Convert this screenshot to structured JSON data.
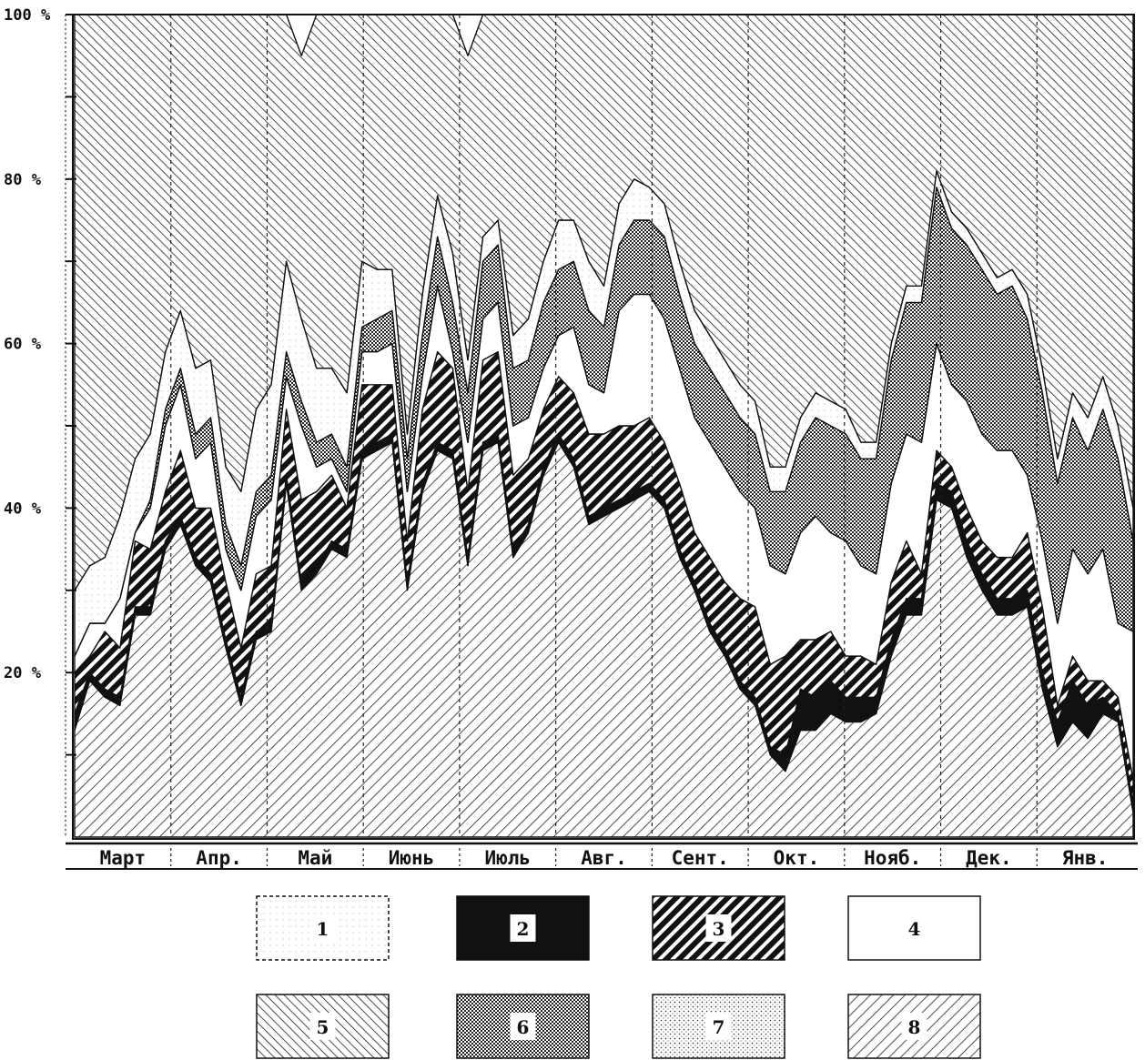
{
  "chart_data": {
    "type": "area",
    "stacked": true,
    "normalized": true,
    "yticks": [
      "20 %",
      "40 %",
      "60 %",
      "80 %",
      "100 %"
    ],
    "ylim": [
      0,
      100
    ],
    "months": [
      "Март",
      "Апр.",
      "Май",
      "Июнь",
      "Июль",
      "Авг.",
      "Сент.",
      "Окт.",
      "Нояб.",
      "Дек.",
      "Янв."
    ],
    "legend": [
      "1",
      "2",
      "3",
      "4",
      "5",
      "6",
      "7",
      "8"
    ],
    "series": [
      {
        "key": "8",
        "values": [
          13,
          19,
          17,
          16,
          27,
          27,
          35,
          38,
          33,
          31,
          23,
          16,
          24,
          25,
          43,
          30,
          32,
          35,
          34,
          46,
          47,
          48,
          30,
          42,
          47,
          46,
          33,
          47,
          48,
          34,
          37,
          44,
          48,
          45,
          38,
          39,
          40,
          41,
          42,
          40,
          34,
          30,
          25,
          22,
          18,
          16,
          10,
          8,
          13,
          13,
          15,
          14,
          14,
          15,
          22,
          27,
          27,
          41,
          40,
          34,
          30,
          27,
          27,
          28,
          18,
          11,
          14,
          12,
          15,
          14,
          3
        ]
      },
      {
        "key": "2",
        "values": [
          2,
          1,
          1,
          1,
          1,
          1,
          1,
          1,
          1,
          1,
          1,
          1,
          1,
          1,
          1,
          1,
          1,
          1,
          1,
          1,
          1,
          1,
          1,
          1,
          1,
          1,
          1,
          1,
          1,
          1,
          1,
          1,
          1,
          1,
          1,
          1,
          1,
          1,
          1,
          1,
          1,
          1,
          1,
          1,
          1,
          1,
          1,
          2,
          5,
          4,
          4,
          3,
          3,
          2,
          2,
          2,
          2,
          2,
          2,
          2,
          2,
          2,
          2,
          2,
          2,
          3,
          5,
          4,
          2,
          1,
          1
        ]
      },
      {
        "key": "3",
        "values": [
          5,
          2,
          7,
          6,
          8,
          7,
          6,
          8,
          6,
          8,
          7,
          6,
          7,
          7,
          8,
          10,
          9,
          8,
          5,
          8,
          7,
          6,
          5,
          9,
          11,
          10,
          8,
          10,
          10,
          9,
          8,
          7,
          7,
          8,
          10,
          9,
          9,
          8,
          8,
          7,
          8,
          6,
          8,
          8,
          10,
          11,
          10,
          12,
          6,
          7,
          6,
          5,
          5,
          4,
          7,
          7,
          3,
          4,
          3,
          4,
          4,
          5,
          5,
          7,
          8,
          2,
          3,
          3,
          2,
          2,
          3
        ]
      },
      {
        "key": "4",
        "values": [
          2,
          4,
          1,
          6,
          1,
          5,
          8,
          8,
          6,
          8,
          4,
          7,
          7,
          8,
          4,
          9,
          3,
          2,
          2,
          4,
          4,
          5,
          6,
          4,
          8,
          2,
          6,
          5,
          6,
          6,
          5,
          5,
          5,
          8,
          6,
          5,
          14,
          16,
          15,
          15,
          14,
          14,
          14,
          14,
          13,
          12,
          12,
          10,
          13,
          15,
          12,
          14,
          11,
          11,
          12,
          13,
          16,
          13,
          10,
          13,
          13,
          13,
          13,
          7,
          8,
          10,
          13,
          13,
          16,
          9,
          18
        ]
      },
      {
        "key": "7",
        "values": [
          0,
          0,
          0,
          0,
          0,
          0,
          0,
          0,
          0,
          0,
          0,
          0,
          0,
          0,
          0,
          0,
          0,
          0,
          0,
          0,
          0,
          0,
          0,
          0,
          0,
          0,
          0,
          0,
          0,
          0,
          0,
          0,
          0,
          0,
          0,
          0,
          0,
          0,
          0,
          0,
          0,
          0,
          0,
          0,
          0,
          0,
          0,
          0,
          0,
          0,
          0,
          0,
          0,
          0,
          0,
          0,
          0,
          0,
          0,
          0,
          0,
          0,
          0,
          0,
          0,
          0,
          0,
          0,
          0,
          0,
          0
        ]
      },
      {
        "key": "6",
        "values": [
          0,
          0,
          0,
          0,
          0,
          1,
          2,
          2,
          3,
          3,
          3,
          3,
          3,
          3,
          3,
          3,
          3,
          3,
          3,
          3,
          4,
          4,
          4,
          5,
          6,
          6,
          6,
          7,
          7,
          7,
          7,
          8,
          8,
          8,
          9,
          8,
          8,
          9,
          9,
          10,
          9,
          9,
          9,
          9,
          9,
          9,
          9,
          10,
          11,
          12,
          13,
          13,
          13,
          14,
          15,
          16,
          17,
          19,
          19,
          19,
          20,
          19,
          20,
          19,
          18,
          17,
          16,
          15,
          17,
          20,
          11
        ]
      },
      {
        "key": "1",
        "values": [
          8,
          7,
          8,
          10,
          9,
          8,
          7,
          7,
          8,
          7,
          7,
          9,
          10,
          11,
          11,
          10,
          9,
          8,
          9,
          8,
          6,
          5,
          3,
          5,
          5,
          6,
          4,
          3,
          3,
          4,
          5,
          5,
          6,
          5,
          6,
          5,
          5,
          5,
          4,
          4,
          4,
          4,
          4,
          4,
          4,
          4,
          3,
          3,
          3,
          3,
          3,
          3,
          2,
          2,
          2,
          2,
          2,
          2,
          2,
          2,
          2,
          2,
          2,
          3,
          3,
          3,
          3,
          4,
          4,
          4,
          4
        ]
      },
      {
        "key": "5",
        "values": [
          70,
          67,
          66,
          61,
          54,
          51,
          41,
          36,
          43,
          42,
          55,
          58,
          48,
          45,
          30,
          32,
          43,
          44,
          46,
          30,
          31,
          31,
          51,
          34,
          22,
          29,
          37,
          27,
          25,
          39,
          37,
          31,
          25,
          25,
          30,
          33,
          23,
          20,
          21,
          23,
          30,
          36,
          39,
          42,
          45,
          47,
          55,
          55,
          49,
          46,
          47,
          48,
          52,
          52,
          40,
          33,
          33,
          19,
          24,
          26,
          29,
          34,
          33,
          34,
          43,
          54,
          46,
          49,
          44,
          50,
          60
        ]
      }
    ]
  }
}
